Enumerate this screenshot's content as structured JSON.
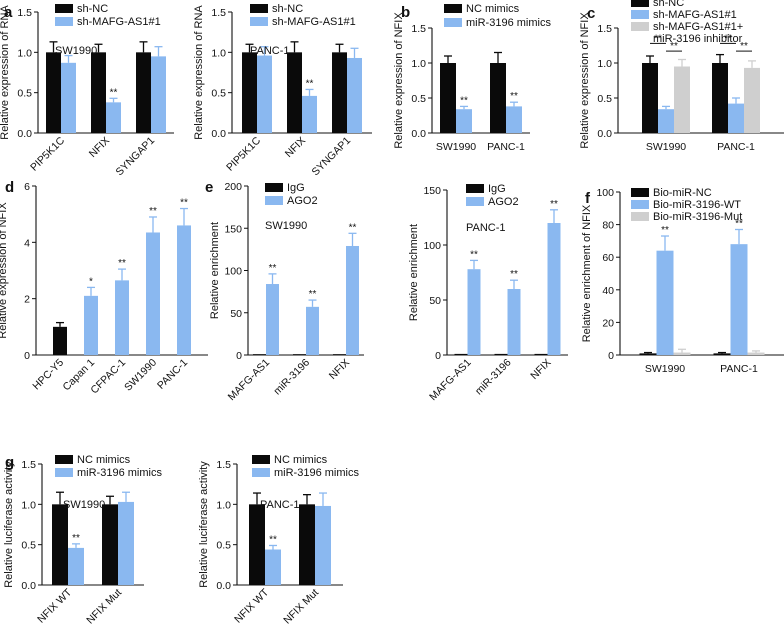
{
  "colors": {
    "black": "#0a0a0a",
    "blue": "#8ab8f0",
    "gray": "#cfcfcf",
    "axis": "#111111"
  },
  "chart_data": [
    {
      "id": "a1",
      "panel": "a",
      "type": "bar",
      "subtitle": "SW1990",
      "ylabel": "Relative expression of RNA",
      "ylim": [
        0,
        1.5
      ],
      "yticks": [
        "0.0",
        "0.5",
        "1.0",
        "1.5"
      ],
      "categories": [
        "PIP5K1C",
        "NFIX",
        "SYNGAP1"
      ],
      "series": [
        {
          "name": "sh-NC",
          "color": "black",
          "values": [
            1.0,
            1.0,
            1.0
          ],
          "errors": [
            0.13,
            0.1,
            0.13
          ]
        },
        {
          "name": "sh-MAFG-AS1#1",
          "color": "blue",
          "values": [
            0.87,
            0.38,
            0.95
          ],
          "errors": [
            0.09,
            0.05,
            0.12
          ]
        }
      ],
      "annotations": [
        {
          "cat": 1,
          "series": 1,
          "text": "**"
        }
      ]
    },
    {
      "id": "a2",
      "panel": "",
      "type": "bar",
      "subtitle": "PANC-1",
      "ylabel": "Relative expression of RNA",
      "ylim": [
        0,
        1.5
      ],
      "yticks": [
        "0.0",
        "0.5",
        "1.0",
        "1.5"
      ],
      "categories": [
        "PIP5K1C",
        "NFIX",
        "SYNGAP1"
      ],
      "series": [
        {
          "name": "sh-NC",
          "color": "black",
          "values": [
            1.0,
            1.0,
            1.0
          ],
          "errors": [
            0.1,
            0.13,
            0.1
          ]
        },
        {
          "name": "sh-MAFG-AS1#1",
          "color": "blue",
          "values": [
            0.96,
            0.46,
            0.93
          ],
          "errors": [
            0.11,
            0.08,
            0.12
          ]
        }
      ],
      "annotations": [
        {
          "cat": 1,
          "series": 1,
          "text": "**"
        }
      ]
    },
    {
      "id": "b",
      "panel": "b",
      "type": "bar",
      "subtitle": "",
      "ylabel": "Relative expression of NFIX",
      "ylim": [
        0,
        1.5
      ],
      "yticks": [
        "0.0",
        "0.5",
        "1.0",
        "1.5"
      ],
      "categories": [
        "SW1990",
        "PANC-1"
      ],
      "series": [
        {
          "name": "NC mimics",
          "color": "black",
          "values": [
            1.0,
            1.0
          ],
          "errors": [
            0.1,
            0.15
          ]
        },
        {
          "name": "miR-3196 mimics",
          "color": "blue",
          "values": [
            0.34,
            0.38
          ],
          "errors": [
            0.04,
            0.06
          ]
        }
      ],
      "annotations": [
        {
          "cat": 0,
          "series": 1,
          "text": "**"
        },
        {
          "cat": 1,
          "series": 1,
          "text": "**"
        }
      ]
    },
    {
      "id": "c",
      "panel": "c",
      "type": "bar",
      "subtitle": "",
      "ylabel": "Relative expression of NFIX",
      "ylim": [
        0,
        1.5
      ],
      "yticks": [
        "0.0",
        "0.5",
        "1.0",
        "1.5"
      ],
      "categories": [
        "SW1990",
        "PANC-1"
      ],
      "series": [
        {
          "name": "sh-NC",
          "color": "black",
          "values": [
            1.0,
            1.0
          ],
          "errors": [
            0.1,
            0.12
          ]
        },
        {
          "name": "sh-MAFG-AS1#1",
          "color": "blue",
          "values": [
            0.34,
            0.42
          ],
          "errors": [
            0.04,
            0.08
          ]
        },
        {
          "name": "sh-MAFG-AS1#1+",
          "name2": "miR-3196 inhibitor",
          "color": "gray",
          "values": [
            0.95,
            0.93
          ],
          "errors": [
            0.1,
            0.1
          ]
        }
      ],
      "brackets": [
        {
          "cat": 0,
          "from": 0,
          "to": 1,
          "level": 1.28,
          "text": "**"
        },
        {
          "cat": 0,
          "from": 1,
          "to": 2,
          "level": 1.17,
          "text": "**"
        },
        {
          "cat": 1,
          "from": 0,
          "to": 1,
          "level": 1.28,
          "text": "**"
        },
        {
          "cat": 1,
          "from": 1,
          "to": 2,
          "level": 1.17,
          "text": "**"
        }
      ]
    },
    {
      "id": "d",
      "panel": "d",
      "type": "bar",
      "subtitle": "",
      "ylabel": "Relative expression of NFIX",
      "ylim": [
        0,
        6
      ],
      "yticks": [
        "0",
        "2",
        "4",
        "6"
      ],
      "categories": [
        "HPC-Y5",
        "Capan 1",
        "CFPAC-1",
        "SW1990",
        "PANC-1"
      ],
      "series": [
        {
          "name": "",
          "color": "mixed",
          "colors": [
            "black",
            "blue",
            "blue",
            "blue",
            "blue"
          ],
          "values": [
            1.0,
            2.1,
            2.65,
            4.35,
            4.6
          ],
          "errors": [
            0.15,
            0.3,
            0.4,
            0.55,
            0.6
          ]
        }
      ],
      "annotations": [
        {
          "cat": 1,
          "series": 0,
          "text": "*"
        },
        {
          "cat": 2,
          "series": 0,
          "text": "**"
        },
        {
          "cat": 3,
          "series": 0,
          "text": "**"
        },
        {
          "cat": 4,
          "series": 0,
          "text": "**"
        }
      ]
    },
    {
      "id": "e1",
      "panel": "e",
      "type": "bar",
      "subtitle": "SW1990",
      "ylabel": "Relative enrichment",
      "ylim": [
        0,
        200
      ],
      "yticks": [
        "0",
        "50",
        "100",
        "150",
        "200"
      ],
      "categories": [
        "MAFG-AS1",
        "miR-3196",
        "NFIX"
      ],
      "series": [
        {
          "name": "IgG",
          "color": "black",
          "values": [
            1,
            1,
            1
          ],
          "errors": [
            0,
            0,
            0
          ]
        },
        {
          "name": "AGO2",
          "color": "blue",
          "values": [
            84,
            57,
            129
          ],
          "errors": [
            12,
            8,
            15
          ]
        }
      ],
      "annotations": [
        {
          "cat": 0,
          "series": 1,
          "text": "**"
        },
        {
          "cat": 1,
          "series": 1,
          "text": "**"
        },
        {
          "cat": 2,
          "series": 1,
          "text": "**"
        }
      ]
    },
    {
      "id": "e2",
      "panel": "",
      "type": "bar",
      "subtitle": "PANC-1",
      "ylabel": "Relative enrichment",
      "ylim": [
        0,
        150
      ],
      "yticks": [
        "0",
        "50",
        "100",
        "150"
      ],
      "categories": [
        "MAFG-AS1",
        "miR-3196",
        "NFIX"
      ],
      "series": [
        {
          "name": "IgG",
          "color": "black",
          "values": [
            1,
            1,
            1
          ],
          "errors": [
            0,
            0,
            0
          ]
        },
        {
          "name": "AGO2",
          "color": "blue",
          "values": [
            78,
            60,
            120
          ],
          "errors": [
            8,
            8,
            12
          ]
        }
      ],
      "annotations": [
        {
          "cat": 0,
          "series": 1,
          "text": "**"
        },
        {
          "cat": 1,
          "series": 1,
          "text": "**"
        },
        {
          "cat": 2,
          "series": 1,
          "text": "**"
        }
      ]
    },
    {
      "id": "f",
      "panel": "f",
      "type": "bar",
      "subtitle": "",
      "ylabel": "Relative enrichment of NFIX",
      "ylim": [
        0,
        100
      ],
      "yticks": [
        "0",
        "20",
        "40",
        "60",
        "80",
        "100"
      ],
      "categories": [
        "SW1990",
        "PANC-1"
      ],
      "series": [
        {
          "name": "Bio-miR-NC",
          "color": "black",
          "values": [
            1,
            1
          ],
          "errors": [
            0.5,
            0.5
          ]
        },
        {
          "name": "Bio-miR-3196-WT",
          "color": "blue",
          "values": [
            64,
            68
          ],
          "errors": [
            9,
            9
          ]
        },
        {
          "name": "Bio-miR-3196-Mut",
          "color": "gray",
          "values": [
            1.5,
            1.5
          ],
          "errors": [
            2,
            1
          ]
        }
      ],
      "annotations": [
        {
          "cat": 0,
          "series": 1,
          "text": "**"
        },
        {
          "cat": 1,
          "series": 1,
          "text": "**"
        }
      ]
    },
    {
      "id": "g1",
      "panel": "g",
      "type": "bar",
      "subtitle": "SW1990",
      "ylabel": "Relative luciferase activity",
      "ylim": [
        0,
        1.5
      ],
      "yticks": [
        "0.0",
        "0.5",
        "1.0",
        "1.5"
      ],
      "categories": [
        "NFIX WT",
        "NFIX Mut"
      ],
      "series": [
        {
          "name": "NC mimics",
          "color": "black",
          "values": [
            1.0,
            1.0
          ],
          "errors": [
            0.15,
            0.1
          ]
        },
        {
          "name": "miR-3196 mimics",
          "color": "blue",
          "values": [
            0.46,
            1.03
          ],
          "errors": [
            0.05,
            0.12
          ]
        }
      ],
      "annotations": [
        {
          "cat": 0,
          "series": 1,
          "text": "**"
        }
      ]
    },
    {
      "id": "g2",
      "panel": "",
      "type": "bar",
      "subtitle": "PANC-1",
      "ylabel": "Relative luciferase activity",
      "ylim": [
        0,
        1.5
      ],
      "yticks": [
        "0.0",
        "0.5",
        "1.0",
        "1.5"
      ],
      "categories": [
        "NFIX WT",
        "NFIX Mut"
      ],
      "series": [
        {
          "name": "NC mimics",
          "color": "black",
          "values": [
            1.0,
            1.0
          ],
          "errors": [
            0.14,
            0.12
          ]
        },
        {
          "name": "miR-3196 mimics",
          "color": "blue",
          "values": [
            0.44,
            0.98
          ],
          "errors": [
            0.05,
            0.16
          ]
        }
      ],
      "annotations": [
        {
          "cat": 0,
          "series": 1,
          "text": "**"
        }
      ]
    }
  ]
}
